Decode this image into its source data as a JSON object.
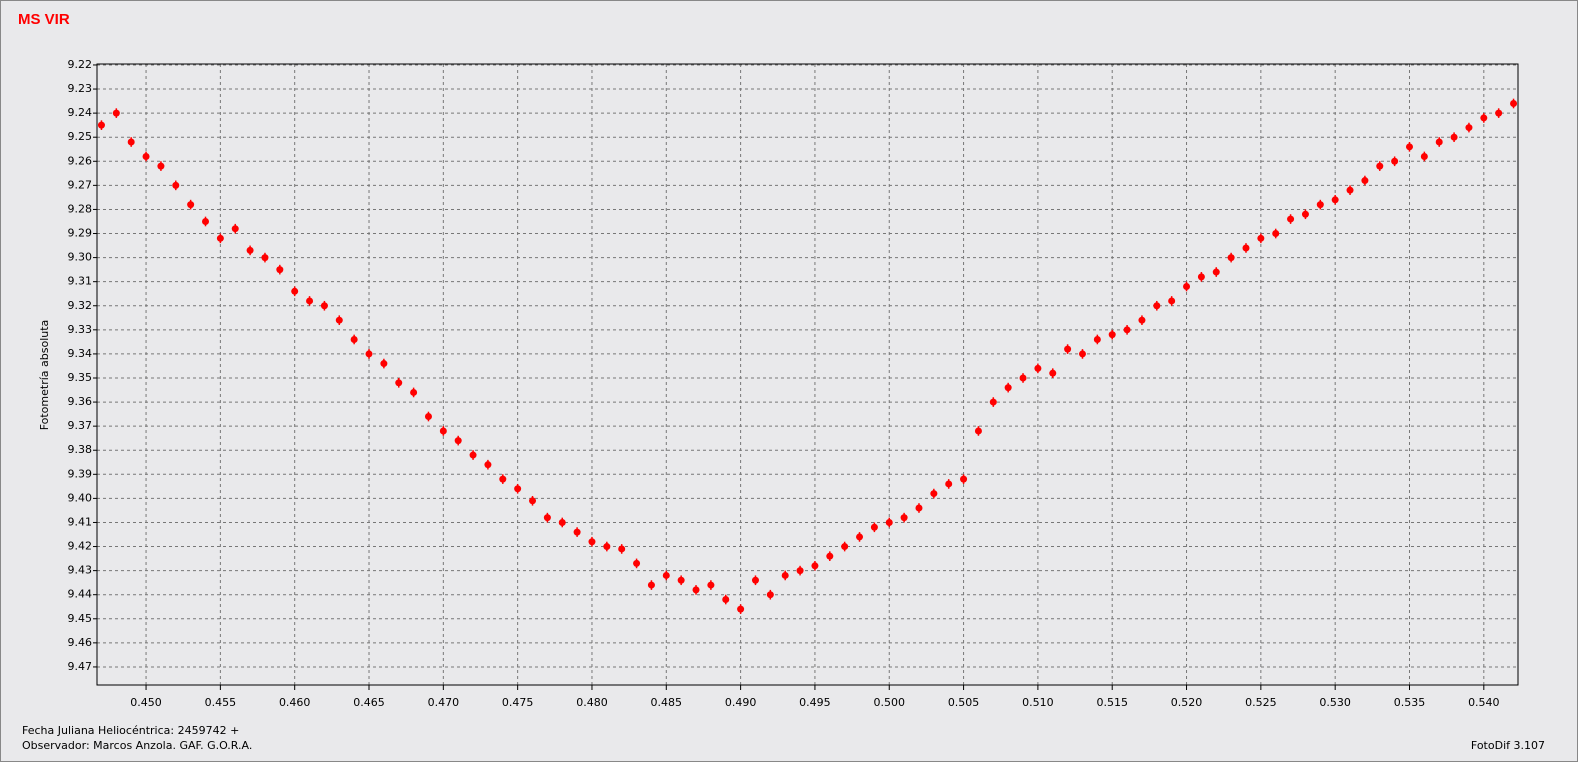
{
  "chart_data": {
    "type": "scatter",
    "title": "MS VIR",
    "y_label": "Fotometría absoluta",
    "footer": [
      "Fecha Juliana Heliocéntrica: 2459742 +",
      "Observador:  Marcos Anzola. GAF. G.O.R.A."
    ],
    "software": "FotoDif 3.107",
    "color": "#ff0000",
    "grid": true,
    "xlim": [
      0.4467,
      0.5423
    ],
    "ylim": [
      9.4775,
      9.2196
    ],
    "xticks": [
      {
        "value": 0.45,
        "label": "0.450"
      },
      0.455,
      {
        "value": 0.46,
        "label": "0.460"
      },
      0.465,
      {
        "value": 0.47,
        "label": "0.470"
      },
      0.475,
      {
        "value": 0.48,
        "label": "0.480"
      },
      0.485,
      {
        "value": 0.49,
        "label": "0.490"
      },
      0.495,
      {
        "value": 0.5,
        "label": "0.500"
      },
      0.505,
      {
        "value": 0.51,
        "label": "0.510"
      },
      0.515,
      {
        "value": 0.52,
        "label": "0.520"
      },
      0.525,
      {
        "value": 0.53,
        "label": "0.530"
      },
      0.535,
      {
        "value": 0.54,
        "label": "0.540"
      }
    ],
    "yticks": [
      9.22,
      9.23,
      9.24,
      9.25,
      9.26,
      9.27,
      9.28,
      9.29,
      {
        "value": 9.3,
        "label": "9.30"
      },
      9.31,
      9.32,
      9.33,
      9.34,
      9.35,
      9.36,
      9.37,
      9.38,
      9.39,
      {
        "value": 9.4,
        "label": "9.40"
      },
      9.41,
      9.42,
      9.43,
      9.44,
      9.45,
      9.46,
      9.47
    ],
    "x": [
      0.447,
      0.448,
      0.449,
      0.45,
      0.451,
      0.452,
      0.453,
      0.454,
      0.455,
      0.456,
      0.457,
      0.458,
      0.459,
      0.46,
      0.461,
      0.462,
      0.463,
      0.464,
      0.465,
      0.466,
      0.467,
      0.468,
      0.469,
      0.47,
      0.471,
      0.472,
      0.473,
      0.474,
      0.475,
      0.476,
      0.477,
      0.478,
      0.479,
      0.48,
      0.481,
      0.482,
      0.483,
      0.484,
      0.485,
      0.486,
      0.487,
      0.488,
      0.489,
      0.49,
      0.491,
      0.492,
      0.493,
      0.494,
      0.495,
      0.496,
      0.497,
      0.498,
      0.499,
      0.5,
      0.501,
      0.502,
      0.503,
      0.504,
      0.505,
      0.506,
      0.507,
      0.508,
      0.509,
      0.51,
      0.511,
      0.512,
      0.513,
      0.514,
      0.515,
      0.516,
      0.517,
      0.518,
      0.519,
      0.52,
      0.521,
      0.522,
      0.523,
      0.524,
      0.525,
      0.526,
      0.527,
      0.528,
      0.529,
      0.53,
      0.531,
      0.532,
      0.533,
      0.534,
      0.535,
      0.536,
      0.537,
      0.538,
      0.539,
      0.54,
      0.541,
      0.542
    ],
    "values": [
      9.245,
      9.24,
      9.252,
      9.258,
      9.262,
      9.27,
      9.278,
      9.285,
      9.292,
      9.288,
      9.297,
      9.3,
      9.305,
      9.314,
      9.318,
      9.32,
      9.326,
      9.334,
      9.34,
      9.344,
      9.352,
      9.356,
      9.366,
      9.372,
      9.376,
      9.382,
      9.386,
      9.392,
      9.396,
      9.401,
      9.408,
      9.41,
      9.414,
      9.418,
      9.42,
      9.421,
      9.427,
      9.436,
      9.432,
      9.434,
      9.438,
      9.436,
      9.442,
      9.446,
      9.434,
      9.44,
      9.432,
      9.43,
      9.428,
      9.424,
      9.42,
      9.416,
      9.412,
      9.41,
      9.408,
      9.404,
      9.398,
      9.394,
      9.392,
      9.372,
      9.36,
      9.354,
      9.35,
      9.346,
      9.348,
      9.338,
      9.34,
      9.334,
      9.332,
      9.33,
      9.326,
      9.32,
      9.318,
      9.312,
      9.308,
      9.306,
      9.3,
      9.296,
      9.292,
      9.29,
      9.284,
      9.282,
      9.278,
      9.276,
      9.272,
      9.268,
      9.262,
      9.26,
      9.254,
      9.258,
      9.252,
      9.25,
      9.246,
      9.242,
      9.24,
      9.236
    ],
    "errors": [
      0.002,
      0.002,
      0.002,
      0.002,
      0.002,
      0.002,
      0.002,
      0.002,
      0.002,
      0.002,
      0.002,
      0.002,
      0.002,
      0.002,
      0.002,
      0.002,
      0.002,
      0.002,
      0.002,
      0.002,
      0.002,
      0.002,
      0.002,
      0.002,
      0.002,
      0.002,
      0.002,
      0.002,
      0.002,
      0.002,
      0.002,
      0.002,
      0.002,
      0.002,
      0.002,
      0.002,
      0.002,
      0.002,
      0.002,
      0.002,
      0.002,
      0.002,
      0.002,
      0.002,
      0.002,
      0.002,
      0.002,
      0.002,
      0.002,
      0.002,
      0.002,
      0.002,
      0.002,
      0.002,
      0.002,
      0.002,
      0.002,
      0.002,
      0.002,
      0.002,
      0.002,
      0.002,
      0.002,
      0.002,
      0.002,
      0.002,
      0.002,
      0.002,
      0.002,
      0.002,
      0.002,
      0.002,
      0.002,
      0.002,
      0.002,
      0.002,
      0.002,
      0.002,
      0.002,
      0.002,
      0.002,
      0.002,
      0.002,
      0.002,
      0.002,
      0.002,
      0.002,
      0.002,
      0.002,
      0.002,
      0.002,
      0.002,
      0.002,
      0.002,
      0.002,
      0.002
    ]
  }
}
